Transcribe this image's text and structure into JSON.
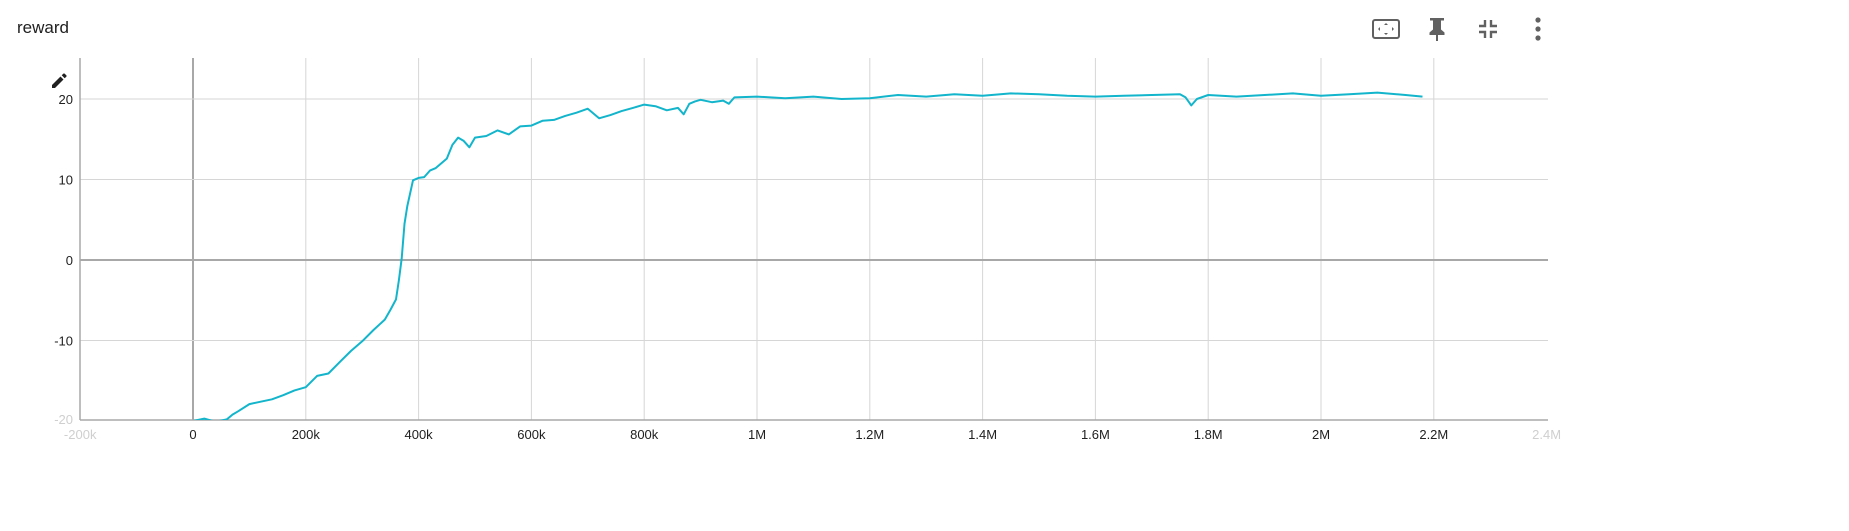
{
  "card": {
    "title": "reward"
  },
  "toolbar": {
    "icons": [
      "fit-to-data-icon",
      "pin-icon",
      "collapse-icon",
      "more-vert-icon"
    ]
  },
  "colors": {
    "series": "#12b5cb",
    "grid": "#d6d6d6",
    "zero_axis": "#a8a8a8",
    "icon": "#616161"
  },
  "chart_data": {
    "type": "line",
    "title": "reward",
    "xlabel": "",
    "ylabel": "",
    "grid": true,
    "xlim": [
      -200000,
      2400000
    ],
    "ylim": [
      -20,
      25
    ],
    "x_ticks": [
      {
        "value": -200000,
        "label": "-200k",
        "faded": true
      },
      {
        "value": 0,
        "label": "0"
      },
      {
        "value": 200000,
        "label": "200k"
      },
      {
        "value": 400000,
        "label": "400k"
      },
      {
        "value": 600000,
        "label": "600k"
      },
      {
        "value": 800000,
        "label": "800k"
      },
      {
        "value": 1000000,
        "label": "1M"
      },
      {
        "value": 1200000,
        "label": "1.2M"
      },
      {
        "value": 1400000,
        "label": "1.4M"
      },
      {
        "value": 1600000,
        "label": "1.6M"
      },
      {
        "value": 1800000,
        "label": "1.8M"
      },
      {
        "value": 2000000,
        "label": "2M"
      },
      {
        "value": 2200000,
        "label": "2.2M"
      },
      {
        "value": 2400000,
        "label": "2.4M",
        "faded": true
      }
    ],
    "y_ticks": [
      {
        "value": -20,
        "label": "-20",
        "faded": true
      },
      {
        "value": -10,
        "label": "-10"
      },
      {
        "value": 0,
        "label": "0"
      },
      {
        "value": 10,
        "label": "10"
      },
      {
        "value": 20,
        "label": "20"
      }
    ],
    "series": [
      {
        "x": [
          0,
          20000,
          40000,
          60000,
          70000,
          80000,
          100000,
          120000,
          140000,
          160000,
          180000,
          200000,
          220000,
          240000,
          260000,
          280000,
          300000,
          320000,
          340000,
          350000,
          360000,
          365000,
          370000,
          375000,
          380000,
          390000,
          400000,
          410000,
          420000,
          430000,
          450000,
          460000,
          470000,
          480000,
          490000,
          500000,
          520000,
          540000,
          560000,
          580000,
          600000,
          620000,
          640000,
          660000,
          680000,
          700000,
          720000,
          740000,
          760000,
          780000,
          800000,
          820000,
          840000,
          860000,
          870000,
          880000,
          890000,
          900000,
          920000,
          940000,
          950000,
          960000,
          1000000,
          1050000,
          1100000,
          1150000,
          1200000,
          1250000,
          1300000,
          1350000,
          1400000,
          1450000,
          1500000,
          1550000,
          1600000,
          1650000,
          1700000,
          1750000,
          1760000,
          1770000,
          1780000,
          1800000,
          1850000,
          1900000,
          1950000,
          2000000,
          2050000,
          2100000,
          2150000,
          2180000
        ],
        "y": [
          -20,
          -19.7,
          -20.1,
          -19.8,
          -19.2,
          -18.8,
          -17.9,
          -17.6,
          -17.3,
          -16.8,
          -16.2,
          -15.8,
          -14.4,
          -14.1,
          -12.7,
          -11.3,
          -10.1,
          -8.7,
          -7.4,
          -6.2,
          -4.9,
          -2.5,
          0.2,
          4.5,
          6.7,
          9.9,
          10.2,
          10.3,
          11.1,
          11.4,
          12.6,
          14.3,
          15.2,
          14.8,
          14.0,
          15.2,
          15.4,
          16.1,
          15.6,
          16.6,
          16.7,
          17.3,
          17.4,
          17.9,
          18.3,
          18.8,
          17.6,
          18.0,
          18.5,
          18.9,
          19.3,
          19.1,
          18.6,
          18.9,
          18.1,
          19.4,
          19.7,
          19.9,
          19.6,
          19.8,
          19.4,
          20.2,
          20.3,
          20.1,
          20.3,
          20.0,
          20.1,
          20.5,
          20.3,
          20.6,
          20.4,
          20.7,
          20.6,
          20.4,
          20.3,
          20.4,
          20.5,
          20.6,
          20.2,
          19.2,
          20.0,
          20.5,
          20.3,
          20.5,
          20.7,
          20.4,
          20.6,
          20.8,
          20.5,
          20.3
        ]
      }
    ]
  }
}
